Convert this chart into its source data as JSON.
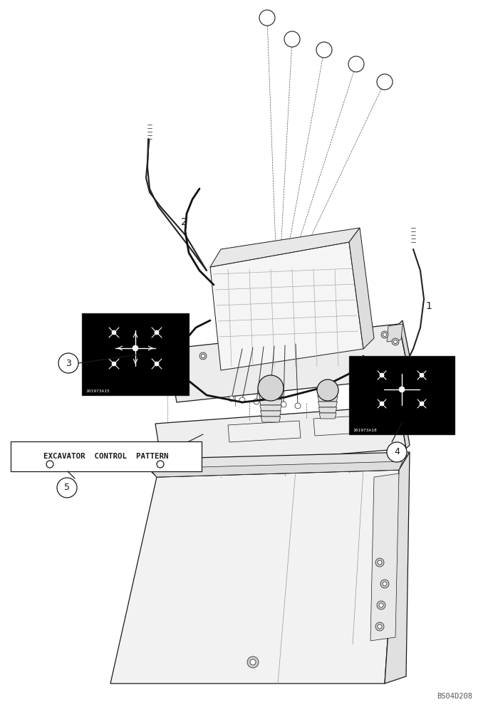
{
  "bg_color": "#ffffff",
  "line_color": "#1a1a1a",
  "watermark": "BS04D208",
  "label1": "1",
  "label2": "2",
  "label3": "3",
  "label4": "4",
  "label5": "5",
  "excavator_text": "EXCAVATOR  CONTROL  PATTERN",
  "sticker3_code": "101973A15",
  "sticker4_code": "101973A18"
}
